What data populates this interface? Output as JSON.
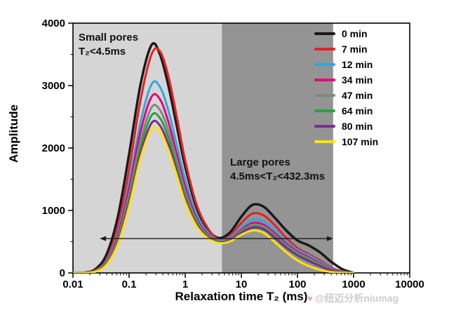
{
  "chart_data": {
    "type": "line",
    "title": "",
    "xlabel": "Relaxation time T₂ (ms)",
    "ylabel": "Amplitude",
    "x_scale": "log",
    "xlim": [
      0.01,
      10000
    ],
    "ylim": [
      0,
      4000
    ],
    "grid": false,
    "legend_position": "top-right",
    "x_ticks": [
      {
        "value": 0.01,
        "label": "0.01"
      },
      {
        "value": 0.1,
        "label": "0.1"
      },
      {
        "value": 1,
        "label": "1"
      },
      {
        "value": 10,
        "label": "10"
      },
      {
        "value": 100,
        "label": "100"
      },
      {
        "value": 1000,
        "label": "1000"
      },
      {
        "value": 10000,
        "label": "10000"
      }
    ],
    "y_ticks": [
      {
        "value": 0,
        "label": "0"
      },
      {
        "value": 1000,
        "label": "1000"
      },
      {
        "value": 2000,
        "label": "2000"
      },
      {
        "value": 3000,
        "label": "3000"
      },
      {
        "value": 4000,
        "label": "4000"
      }
    ],
    "regions": [
      {
        "name": "small-pores",
        "from_ms": 0.01,
        "to_ms": 4.5,
        "color": "#d5d5d5",
        "label_line1": "Small pores",
        "label_line2": "T₂<4.5ms"
      },
      {
        "name": "large-pores",
        "from_ms": 4.5,
        "to_ms": 432.3,
        "color": "#949494",
        "label_line1": "Large pores",
        "label_line2": "4.5ms<T₂<432.3ms"
      }
    ],
    "range_arrow": {
      "from_ms": 0.03,
      "to_ms": 432.3,
      "amplitude": 550
    },
    "x_log10": [
      -2.0,
      -1.8,
      -1.6,
      -1.4,
      -1.2,
      -1.0,
      -0.8,
      -0.6,
      -0.45,
      -0.3,
      -0.15,
      0.0,
      0.2,
      0.4,
      0.6,
      0.8,
      1.0,
      1.2,
      1.4,
      1.6,
      1.8,
      2.0,
      2.2,
      2.4,
      2.6,
      2.8,
      3.0
    ],
    "series": [
      {
        "name": "0 min",
        "color": "#1a1a1a",
        "values": [
          0,
          5,
          60,
          300,
          900,
          1900,
          3000,
          3650,
          3500,
          3000,
          2350,
          1700,
          1050,
          700,
          560,
          650,
          900,
          1090,
          1060,
          880,
          680,
          520,
          440,
          330,
          180,
          60,
          0
        ]
      },
      {
        "name": "7 min",
        "color": "#e8211d",
        "values": [
          0,
          3,
          40,
          220,
          750,
          1650,
          2750,
          3500,
          3550,
          3150,
          2500,
          1800,
          1100,
          720,
          540,
          600,
          800,
          950,
          920,
          760,
          560,
          400,
          300,
          200,
          90,
          25,
          0
        ]
      },
      {
        "name": "12 min",
        "color": "#2fa8e0",
        "values": [
          0,
          3,
          35,
          200,
          650,
          1450,
          2400,
          3020,
          2980,
          2600,
          2050,
          1500,
          950,
          650,
          520,
          570,
          730,
          850,
          820,
          680,
          510,
          370,
          280,
          180,
          80,
          20,
          0
        ]
      },
      {
        "name": "34 min",
        "color": "#e5007e",
        "values": [
          0,
          2,
          30,
          180,
          600,
          1350,
          2250,
          2820,
          2780,
          2420,
          1900,
          1380,
          880,
          620,
          500,
          545,
          690,
          800,
          770,
          630,
          470,
          340,
          250,
          155,
          65,
          15,
          0
        ]
      },
      {
        "name": "47 min",
        "color": "#7f8a80",
        "values": [
          0,
          2,
          28,
          165,
          550,
          1250,
          2100,
          2650,
          2610,
          2280,
          1800,
          1300,
          840,
          600,
          495,
          535,
          670,
          770,
          740,
          600,
          445,
          320,
          230,
          140,
          55,
          12,
          0
        ]
      },
      {
        "name": "64 min",
        "color": "#2f9e44",
        "values": [
          0,
          2,
          25,
          150,
          520,
          1180,
          2000,
          2520,
          2480,
          2170,
          1710,
          1240,
          810,
          585,
          490,
          528,
          655,
          745,
          715,
          580,
          425,
          300,
          210,
          125,
          45,
          10,
          0
        ]
      },
      {
        "name": "80 min",
        "color": "#7b2e8e",
        "values": [
          0,
          1,
          22,
          140,
          490,
          1120,
          1900,
          2400,
          2360,
          2060,
          1630,
          1180,
          780,
          570,
          485,
          520,
          640,
          725,
          695,
          560,
          405,
          280,
          190,
          110,
          38,
          8,
          0
        ]
      },
      {
        "name": "107 min",
        "color": "#ffe400",
        "values": [
          0,
          1,
          20,
          130,
          460,
          1060,
          1820,
          2300,
          2260,
          1970,
          1560,
          1130,
          750,
          555,
          478,
          505,
          610,
          680,
          640,
          490,
          330,
          200,
          110,
          50,
          15,
          3,
          0
        ]
      }
    ]
  },
  "watermark": {
    "icon": "♥",
    "text": "@纽迈分析niumag"
  }
}
